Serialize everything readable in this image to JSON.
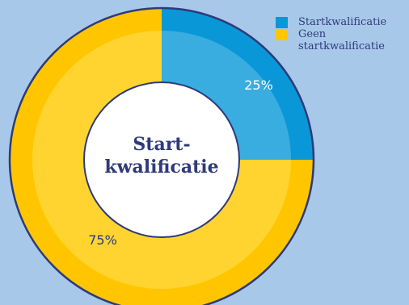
{
  "chart_data": {
    "type": "pie",
    "categories": [
      "Startkwalificatie",
      "Geen startkwalificatie"
    ],
    "values": [
      25,
      75
    ],
    "value_labels": [
      "25%",
      "75%"
    ],
    "center_label": [
      "Start-",
      "kwalificatie"
    ],
    "legend_placement": "top-right",
    "colors": {
      "outer": [
        "#0a97d8",
        "#ffc600"
      ],
      "inner": [
        "#39ade0",
        "#ffd430"
      ],
      "center": "#ffffff",
      "stroke": "#2e3a7a",
      "background": "#a8c8ea"
    }
  },
  "legend": [
    {
      "label": "Startkwalificatie",
      "color": "#0a97d8"
    },
    {
      "label": "Geen startkwalificatie",
      "color": "#ffc600"
    }
  ]
}
